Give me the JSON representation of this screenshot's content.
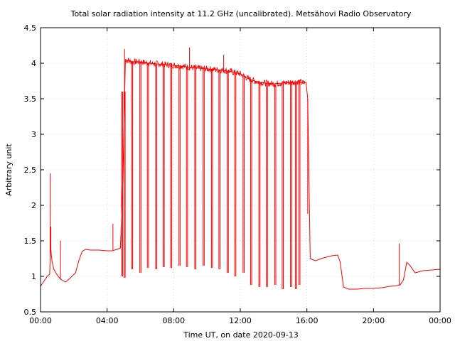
{
  "chart_data": {
    "type": "line",
    "title": "Total solar radiation intensity at 11.2 GHz (uncalibrated). Metsähovi Radio Observatory",
    "xlabel": "Time UT, on date 2020-09-13",
    "ylabel": "Arbitrary unit",
    "xlim": [
      0,
      24
    ],
    "ylim": [
      0.5,
      4.5
    ],
    "grid": true,
    "x_ticks": [
      0,
      4,
      8,
      12,
      16,
      20,
      24
    ],
    "x_tick_labels": [
      "00:00",
      "04:00",
      "08:00",
      "12:00",
      "16:00",
      "20:00",
      "00:00"
    ],
    "y_ticks": [
      0.5,
      1,
      1.5,
      2,
      2.5,
      3,
      3.5,
      4,
      4.5
    ],
    "y_tick_labels": [
      "0.5",
      "1",
      "1.5",
      "2",
      "2.5",
      "3",
      "3.5",
      "4",
      "4.5"
    ],
    "line_color": "#ff0000",
    "series": [
      {
        "x": [
          0.0,
          0.2,
          0.4,
          0.55,
          0.6,
          0.65,
          0.7,
          0.8,
          1.0,
          1.2,
          1.5,
          1.8,
          2.1,
          2.3,
          2.5,
          2.7,
          3.0,
          3.5,
          4.0,
          4.3,
          4.6,
          4.8,
          4.95,
          5.1,
          5.5,
          6.0,
          6.5,
          7.0,
          7.5,
          8.0,
          8.5,
          9.0,
          9.5,
          10.0,
          10.5,
          11.0,
          11.5,
          12.0,
          12.5,
          13.0,
          13.5,
          14.0,
          14.5,
          15.0,
          15.5,
          15.8,
          15.95,
          16.05,
          16.2,
          16.5,
          17.0,
          17.5,
          17.85,
          18.0,
          18.2,
          18.5,
          19.0,
          19.5,
          20.0,
          20.5,
          21.0,
          21.4,
          21.6,
          21.8,
          22.0,
          22.2,
          22.5,
          23.0,
          23.5,
          24.0
        ],
        "y": [
          0.86,
          0.93,
          1.0,
          1.03,
          1.45,
          1.3,
          1.2,
          1.1,
          1.02,
          0.96,
          0.92,
          0.98,
          1.05,
          1.22,
          1.35,
          1.38,
          1.37,
          1.37,
          1.36,
          1.36,
          1.38,
          1.4,
          2.4,
          4.05,
          4.02,
          4.02,
          4.0,
          3.99,
          3.98,
          3.97,
          3.96,
          3.94,
          3.93,
          3.92,
          3.91,
          3.9,
          3.88,
          3.85,
          3.78,
          3.74,
          3.72,
          3.71,
          3.72,
          3.73,
          3.74,
          3.72,
          3.73,
          3.5,
          1.25,
          1.22,
          1.26,
          1.29,
          1.3,
          1.2,
          0.85,
          0.82,
          0.82,
          0.83,
          0.83,
          0.84,
          0.86,
          0.87,
          0.88,
          0.95,
          1.2,
          1.15,
          1.05,
          1.08,
          1.09,
          1.1
        ]
      }
    ],
    "drops_x": [
      4.9,
      5.05,
      5.5,
      6.0,
      6.45,
      6.95,
      7.4,
      7.85,
      8.35,
      8.8,
      9.3,
      9.8,
      10.3,
      10.75,
      11.25,
      11.7,
      12.2,
      12.65,
      13.15,
      13.6,
      14.1,
      14.55,
      15.05,
      15.35,
      15.55
    ],
    "drops_min": [
      1.0,
      0.98,
      1.1,
      1.05,
      1.12,
      1.1,
      1.13,
      1.12,
      1.15,
      1.13,
      1.1,
      1.15,
      1.12,
      1.1,
      1.05,
      1.0,
      1.05,
      0.88,
      0.85,
      0.85,
      0.88,
      0.82,
      0.85,
      0.82,
      0.88
    ],
    "spikes": [
      {
        "x": 0.58,
        "y": 2.45
      },
      {
        "x": 0.62,
        "y": 1.7
      },
      {
        "x": 1.2,
        "y": 1.5
      },
      {
        "x": 4.35,
        "y": 1.74
      },
      {
        "x": 5.05,
        "y": 4.2
      },
      {
        "x": 8.95,
        "y": 4.22
      },
      {
        "x": 11.0,
        "y": 4.12
      },
      {
        "x": 21.55,
        "y": 1.46
      },
      {
        "x": 16.05,
        "y": 1.88
      }
    ]
  }
}
